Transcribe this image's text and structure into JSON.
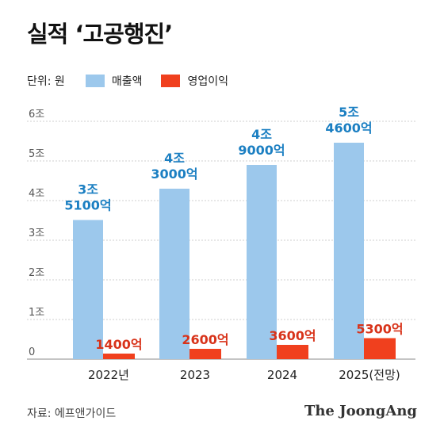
{
  "title": "실적 ‘고공행진’",
  "unit_label": "단위: 원",
  "source": "자료: 에프앤가이드",
  "brand": "The JoongAng",
  "colors": {
    "revenue": "#9cc8ec",
    "profit": "#f0401e",
    "revenue_label": "#1b7fc2",
    "profit_label": "#d8331a"
  },
  "chart_data": {
    "type": "bar",
    "categories": [
      "2022년",
      "2023",
      "2024",
      "2025(전망)"
    ],
    "series": [
      {
        "name": "매출액",
        "values": [
          35100,
          43000,
          49000,
          54600
        ],
        "labels": [
          "3조\n5100억",
          "4조\n3000억",
          "4조\n9000억",
          "5조\n4600억"
        ]
      },
      {
        "name": "영업이익",
        "values": [
          1400,
          2600,
          3600,
          5300
        ],
        "labels": [
          "1400억",
          "2600억",
          "3600억",
          "5300억"
        ]
      }
    ],
    "ylim": [
      0,
      60000
    ],
    "yticks": [
      0,
      10000,
      20000,
      30000,
      40000,
      50000,
      60000
    ],
    "ytick_labels": [
      "0",
      "1조",
      "2조",
      "3조",
      "4조",
      "5조",
      "6조"
    ],
    "grid": true,
    "legend": "top-left"
  }
}
